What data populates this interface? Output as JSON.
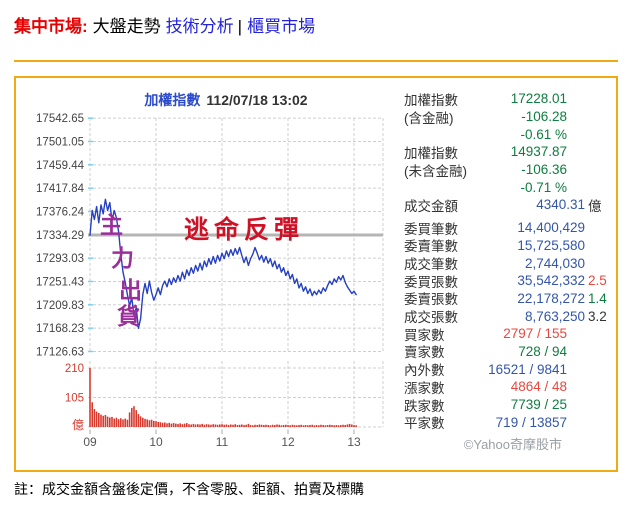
{
  "header": {
    "section": "集中市場:",
    "current": "大盤走勢",
    "link_technical": "技術分析",
    "separator": "|",
    "link_otc": "櫃買市場"
  },
  "chart": {
    "title": "加權指數",
    "timestamp": "112/07/18 13:02"
  },
  "annotations": {
    "vertical": [
      "主",
      "力",
      "出",
      "貨"
    ],
    "horizontal": "逃命反彈"
  },
  "panel": {
    "rows": [
      {
        "label": "加權指數",
        "value": "17228.01",
        "vc": "green",
        "aux": "",
        "ac": "dark",
        "pad": true
      },
      {
        "label": "(含金融)",
        "value": "-106.28",
        "vc": "green",
        "aux": "",
        "ac": "dark",
        "pad": true
      },
      {
        "label": "",
        "value": "-0.61 %",
        "vc": "green",
        "aux": "",
        "ac": "dark",
        "pad": true
      },
      {
        "label": "加權指數",
        "value": "14937.87",
        "vc": "green",
        "aux": "",
        "ac": "dark",
        "pad": true
      },
      {
        "label": "(未含金融)",
        "value": "-106.36",
        "vc": "green",
        "aux": "",
        "ac": "dark",
        "pad": true
      },
      {
        "label": "",
        "value": "-0.71 %",
        "vc": "green",
        "aux": "",
        "ac": "dark",
        "pad": true
      },
      {
        "label": "成交金額",
        "value": "4340.31",
        "vc": "blue",
        "aux": "億",
        "ac": "dark"
      },
      {
        "label": "委買筆數",
        "value": "14,400,429",
        "vc": "blue",
        "aux": "",
        "ac": "dark",
        "gap": true
      },
      {
        "label": "委賣筆數",
        "value": "15,725,580",
        "vc": "blue",
        "aux": "",
        "ac": "dark"
      },
      {
        "label": "成交筆數",
        "value": "2,744,030",
        "vc": "blue",
        "aux": "",
        "ac": "dark"
      },
      {
        "label": "委買張數",
        "value": "35,542,332",
        "vc": "blue",
        "aux": "2.5",
        "ac": "red"
      },
      {
        "label": "委賣張數",
        "value": "22,178,272",
        "vc": "blue",
        "aux": "1.4",
        "ac": "green"
      },
      {
        "label": "成交張數",
        "value": "8,763,250",
        "vc": "blue",
        "aux": "3.2",
        "ac": "dark"
      },
      {
        "label": "買家數",
        "value": "2797 / 155",
        "vc": "red",
        "aux": "",
        "ac": "dark",
        "pad": true
      },
      {
        "label": "賣家數",
        "value": "728 / 94",
        "vc": "green",
        "aux": "",
        "ac": "dark",
        "pad": true
      },
      {
        "label": "內外數",
        "value": "16521 / 9841",
        "vc": "blue",
        "aux": "",
        "ac": "dark",
        "pad": true
      },
      {
        "label": "漲家數",
        "value": "4864 / 48",
        "vc": "red",
        "aux": "",
        "ac": "dark",
        "pad": true
      },
      {
        "label": "跌家數",
        "value": "7739 / 25",
        "vc": "green",
        "aux": "",
        "ac": "dark",
        "pad": true
      },
      {
        "label": "平家數",
        "value": "719 / 13857",
        "vc": "blue",
        "aux": "",
        "ac": "dark",
        "pad": true
      }
    ],
    "copyright": "©Yahoo奇摩股市"
  },
  "note": "註：成交金額含盤後定價，不含零股、鉅額、拍賣及標購",
  "colors": {
    "gold": "#f0ab12",
    "header_red": "#e60000",
    "link_blue": "#2222dd",
    "green": "#0e7d40",
    "blue": "#3355aa",
    "red": "#e8483f",
    "line_blue": "#2540c0",
    "volume_red": "#d93a2e",
    "anno_purple": "#9a2f9a",
    "anno_red": "#cf1126",
    "ref_gray": "#b5b5b5",
    "grid_gray": "#cfcfcf",
    "axis_text": "#555555",
    "cyan_tick": "#7fd0ea"
  },
  "chart_data": {
    "type": "line",
    "title": "加權指數",
    "timestamp": "112/07/18 13:02",
    "x_axis": {
      "labels": [
        "09",
        "10",
        "11",
        "12",
        "13"
      ],
      "unit": "hour",
      "session": "09:00-13:02"
    },
    "price": {
      "y_ticks": [
        17542.65,
        17501.05,
        17459.44,
        17417.84,
        17376.24,
        17334.29,
        17293.03,
        17251.43,
        17209.83,
        17168.23,
        17126.63
      ],
      "prev_close": 17334.29,
      "last": 17228.01,
      "change": -106.28,
      "change_pct": -0.61,
      "sample_interval_min": 2,
      "values": [
        17334,
        17378,
        17362,
        17385,
        17356,
        17388,
        17372,
        17398,
        17378,
        17392,
        17360,
        17378,
        17365,
        17340,
        17300,
        17268,
        17250,
        17228,
        17208,
        17222,
        17190,
        17205,
        17168,
        17185,
        17228,
        17248,
        17230,
        17252,
        17232,
        17218,
        17228,
        17240,
        17228,
        17244,
        17252,
        17242,
        17256,
        17246,
        17258,
        17250,
        17262,
        17252,
        17268,
        17256,
        17272,
        17262,
        17276,
        17266,
        17280,
        17270,
        17284,
        17272,
        17288,
        17278,
        17292,
        17282,
        17296,
        17284,
        17298,
        17288,
        17302,
        17292,
        17306,
        17296,
        17308,
        17298,
        17310,
        17300,
        17312,
        17298,
        17285,
        17295,
        17280,
        17292,
        17300,
        17312,
        17302,
        17290,
        17298,
        17286,
        17296,
        17284,
        17292,
        17278,
        17288,
        17274,
        17282,
        17268,
        17276,
        17262,
        17270,
        17256,
        17264,
        17248,
        17256,
        17240,
        17248,
        17234,
        17242,
        17230,
        17238,
        17226,
        17234,
        17228,
        17236,
        17230,
        17240,
        17234,
        17244,
        17252,
        17246,
        17256,
        17250,
        17260,
        17254,
        17262,
        17250,
        17242,
        17236,
        17230,
        17234,
        17228
      ]
    },
    "volume": {
      "unit_label": "億",
      "y_ticks": [
        210,
        105
      ],
      "total": 4340.31,
      "sample_interval_min": 2,
      "values": [
        210,
        88,
        64,
        55,
        50,
        44,
        40,
        43,
        37,
        34,
        36,
        30,
        33,
        28,
        31,
        27,
        30,
        26,
        52,
        68,
        74,
        60,
        46,
        38,
        33,
        29,
        27,
        24,
        26,
        22,
        21,
        18,
        17,
        15,
        16,
        13,
        15,
        12,
        14,
        12,
        11,
        13,
        10,
        12,
        14,
        10,
        9,
        11,
        9,
        10,
        9,
        11,
        8,
        10,
        9,
        8,
        10,
        9,
        8,
        9,
        10,
        8,
        9,
        7,
        9,
        8,
        10,
        7,
        8,
        9,
        7,
        8,
        11,
        7,
        6,
        8,
        7,
        9,
        8,
        7,
        8,
        7,
        6,
        8,
        7,
        9,
        8,
        6,
        7,
        8,
        7,
        6,
        8,
        7,
        6,
        7,
        8,
        6,
        7,
        6,
        7,
        8,
        6,
        7,
        6,
        8,
        7,
        6,
        7,
        8,
        7,
        6,
        7,
        6,
        7,
        8,
        7,
        9,
        11,
        9,
        7,
        6
      ]
    }
  }
}
